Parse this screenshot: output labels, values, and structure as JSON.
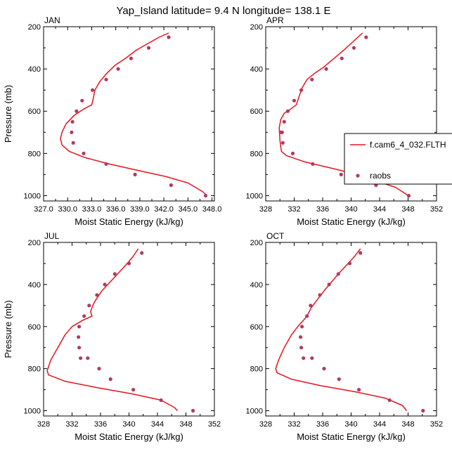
{
  "figure_title": "Yap_Island  latitude= 9.4 N longitude= 138.1 E",
  "colors": {
    "model": "#e8141c",
    "raobs": "#b03a64",
    "axis": "#000000"
  },
  "legend": {
    "placement": "right of APR panel",
    "model_label": "f.cam6_4_032.FLTH",
    "obs_label": "raobs"
  },
  "chart_data": [
    {
      "type": "line",
      "title": "JAN",
      "xlabel": "Moist Static Energy (kJ/kg)",
      "ylabel": "Pressure (mb)",
      "xlim": [
        327,
        348.3
      ],
      "ylim": [
        1025,
        200
      ],
      "xticks": [
        327,
        330,
        333,
        336,
        339,
        342,
        345,
        348
      ],
      "xtick_labels": [
        "327.0",
        "330.0",
        "333.0",
        "336.0",
        "339.0",
        "342.0",
        "345.0",
        "348.0"
      ],
      "yticks": [
        200,
        400,
        600,
        800,
        1000
      ],
      "series": [
        {
          "name": "f.cam6_4_032.FLTH",
          "style": "line",
          "x": [
            342.6,
            341.4,
            340.0,
            338.6,
            337.2,
            336.0,
            334.9,
            334.0,
            333.4,
            333.2,
            333.0,
            332.0,
            330.8,
            329.8,
            329.3,
            329.1,
            329.3,
            330.2,
            332.2,
            335.2,
            338.7,
            342.3,
            345.0,
            346.8,
            347.4
          ],
          "y": [
            230,
            250,
            280,
            310,
            350,
            380,
            420,
            460,
            500,
            540,
            570,
            590,
            620,
            660,
            700,
            730,
            760,
            790,
            820,
            850,
            880,
            910,
            940,
            980,
            1000
          ]
        },
        {
          "name": "raobs",
          "style": "markers",
          "x": [
            342.6,
            340.1,
            337.9,
            336.3,
            334.8,
            333.1,
            331.8,
            331.1,
            330.6,
            330.5,
            330.7,
            332.0,
            334.8,
            338.4,
            342.9,
            347.2
          ],
          "y": [
            250,
            300,
            350,
            400,
            450,
            500,
            550,
            600,
            650,
            700,
            750,
            800,
            850,
            900,
            950,
            1000
          ]
        }
      ]
    },
    {
      "type": "line",
      "title": "APR",
      "xlabel": "Moist Static Energy (kJ/kg)",
      "ylabel": "Pressure (mb)",
      "xlim": [
        328,
        352
      ],
      "ylim": [
        1025,
        200
      ],
      "xticks": [
        328,
        332,
        336,
        340,
        344,
        348,
        352
      ],
      "xtick_labels": [
        "328",
        "332",
        "336",
        "340",
        "344",
        "348",
        "352"
      ],
      "yticks": [
        200,
        400,
        600,
        800,
        1000
      ],
      "series": [
        {
          "name": "f.cam6_4_032.FLTH",
          "style": "line",
          "x": [
            341.6,
            340.3,
            339.0,
            337.6,
            336.2,
            334.9,
            333.8,
            333.1,
            332.7,
            332.3,
            331.5,
            330.6,
            330.1,
            329.9,
            330.0,
            330.2,
            330.9,
            333.5,
            338.5,
            343.5,
            346.2,
            347.6,
            348.0
          ],
          "y": [
            230,
            270,
            310,
            350,
            390,
            420,
            450,
            490,
            530,
            570,
            590,
            610,
            640,
            680,
            740,
            790,
            810,
            840,
            880,
            930,
            960,
            990,
            1000
          ]
        },
        {
          "name": "raobs",
          "style": "markers",
          "x": [
            342.1,
            340.4,
            338.7,
            336.5,
            334.5,
            333.0,
            332.0,
            331.1,
            330.6,
            330.3,
            330.1,
            330.4,
            331.8,
            334.6,
            338.6,
            343.5,
            348.1
          ],
          "y": [
            250,
            300,
            350,
            400,
            450,
            500,
            550,
            600,
            650,
            700,
            700,
            750,
            800,
            850,
            900,
            950,
            1000
          ]
        }
      ]
    },
    {
      "type": "line",
      "title": "JUL",
      "xlabel": "Moist Static Energy (kJ/kg)",
      "ylabel": "Pressure (mb)",
      "xlim": [
        328,
        352
      ],
      "ylim": [
        1025,
        200
      ],
      "xticks": [
        328,
        332,
        336,
        340,
        344,
        348,
        352
      ],
      "xtick_labels": [
        "328",
        "332",
        "336",
        "340",
        "344",
        "348",
        "352"
      ],
      "yticks": [
        200,
        400,
        600,
        800,
        1000
      ],
      "series": [
        {
          "name": "f.cam6_4_032.FLTH",
          "style": "line",
          "x": [
            341.3,
            340.5,
            339.5,
            338.4,
            337.3,
            336.2,
            335.4,
            334.9,
            334.6,
            334.8,
            333.5,
            332.0,
            331.0,
            330.0,
            329.0,
            328.5,
            328.7,
            331.0,
            335.5,
            340.5,
            344.5,
            346.4,
            346.8
          ],
          "y": [
            230,
            270,
            310,
            350,
            390,
            430,
            470,
            500,
            530,
            550,
            570,
            600,
            640,
            700,
            760,
            810,
            830,
            860,
            890,
            920,
            950,
            985,
            1000
          ]
        },
        {
          "name": "raobs",
          "style": "markers",
          "x": [
            341.8,
            340.0,
            338.0,
            336.6,
            335.5,
            334.4,
            333.7,
            333.0,
            332.9,
            333.0,
            333.2,
            334.2,
            335.8,
            337.4,
            340.6,
            344.5,
            349.0
          ],
          "y": [
            250,
            300,
            350,
            400,
            450,
            500,
            550,
            600,
            650,
            700,
            750,
            750,
            800,
            850,
            900,
            950,
            1000
          ]
        }
      ]
    },
    {
      "type": "line",
      "title": "OCT",
      "xlabel": "Moist Static Energy (kJ/kg)",
      "ylabel": "Pressure (mb)",
      "xlim": [
        328,
        352
      ],
      "ylim": [
        1025,
        200
      ],
      "xticks": [
        328,
        332,
        336,
        340,
        344,
        348,
        352
      ],
      "xtick_labels": [
        "328",
        "332",
        "336",
        "340",
        "344",
        "348",
        "352"
      ],
      "yticks": [
        200,
        400,
        600,
        800,
        1000
      ],
      "series": [
        {
          "name": "f.cam6_4_032.FLTH",
          "style": "line",
          "x": [
            341.3,
            340.4,
            339.3,
            338.2,
            337.2,
            336.2,
            335.3,
            334.4,
            333.8,
            333.3,
            332.5,
            331.6,
            330.6,
            329.8,
            329.4,
            329.6,
            331.6,
            335.6,
            340.6,
            344.8,
            347.2,
            347.8
          ],
          "y": [
            230,
            270,
            310,
            350,
            390,
            430,
            470,
            510,
            550,
            570,
            600,
            640,
            700,
            760,
            800,
            820,
            850,
            880,
            910,
            940,
            975,
            1000
          ]
        },
        {
          "name": "raobs",
          "style": "markers",
          "x": [
            341.3,
            339.8,
            338.2,
            336.9,
            335.6,
            334.3,
            333.8,
            333.1,
            332.9,
            333.0,
            333.3,
            334.5,
            336.2,
            338.3,
            341.1,
            345.4,
            350.1
          ],
          "y": [
            250,
            300,
            350,
            400,
            450,
            500,
            550,
            600,
            650,
            700,
            750,
            750,
            800,
            850,
            900,
            950,
            1000
          ]
        }
      ]
    }
  ]
}
